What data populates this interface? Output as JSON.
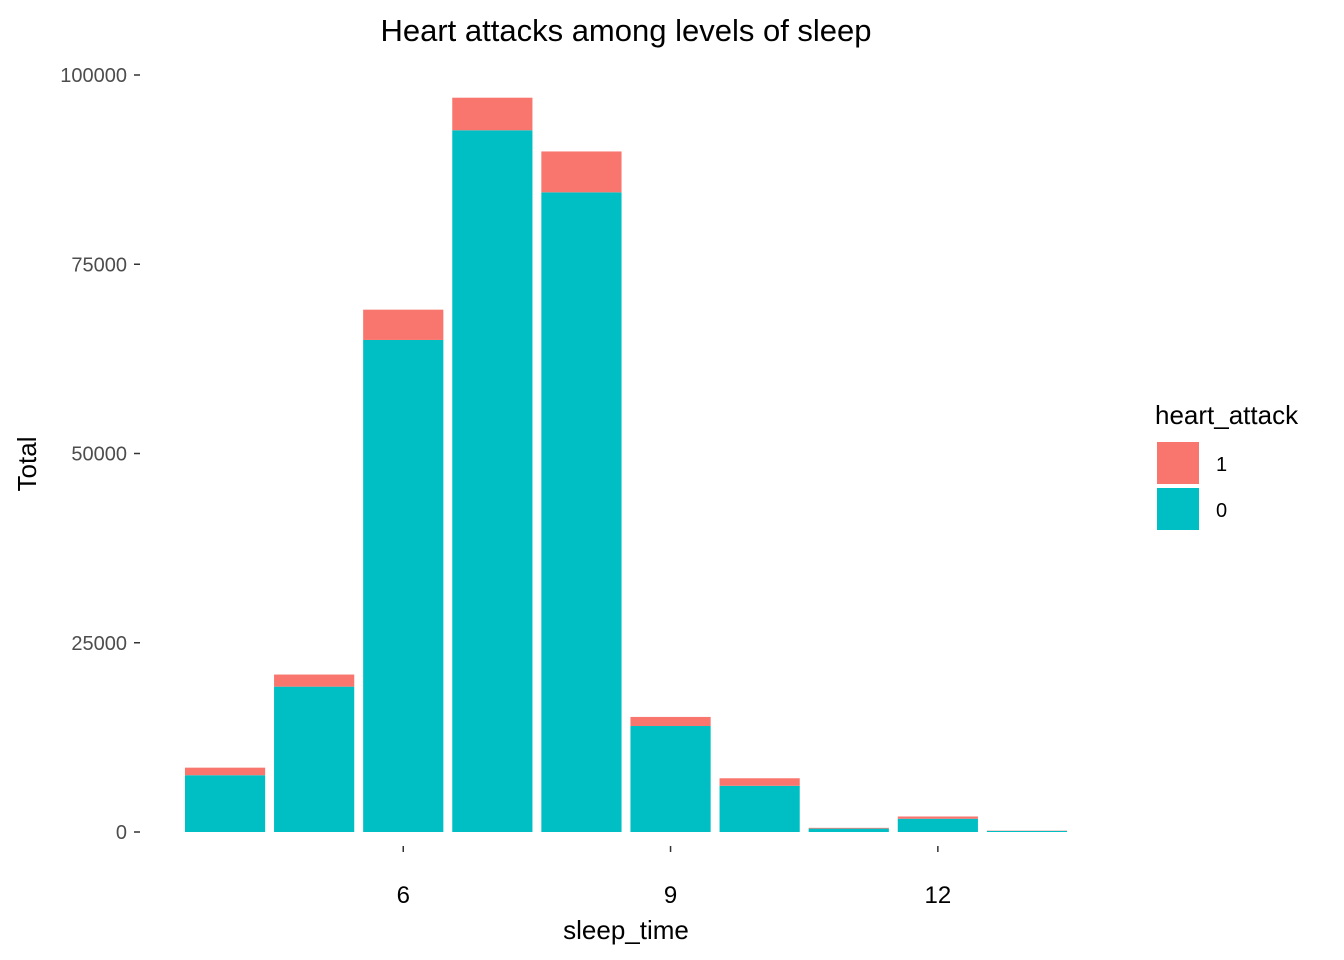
{
  "chart_data": {
    "type": "bar",
    "stacked": true,
    "title": "Heart attacks among levels of sleep",
    "xlabel": "sleep_time",
    "ylabel": "Total",
    "categories": [
      4,
      5,
      6,
      7,
      8,
      9,
      10,
      11,
      12,
      13
    ],
    "x_ticks": [
      6,
      9,
      12
    ],
    "y_ticks": [
      0,
      25000,
      50000,
      75000,
      100000
    ],
    "ylim": [
      0,
      100000
    ],
    "grid": false,
    "legend": {
      "title": "heart_attack",
      "position": "right"
    },
    "series": [
      {
        "name": "0",
        "color": "#00BFC4",
        "values": [
          7500,
          19200,
          65000,
          92700,
          84500,
          14000,
          6100,
          450,
          1750,
          150
        ]
      },
      {
        "name": "1",
        "color": "#F8766D",
        "values": [
          1000,
          1600,
          4000,
          4300,
          5400,
          1200,
          1000,
          100,
          300,
          40
        ]
      }
    ],
    "legend_order": [
      "1",
      "0"
    ]
  }
}
